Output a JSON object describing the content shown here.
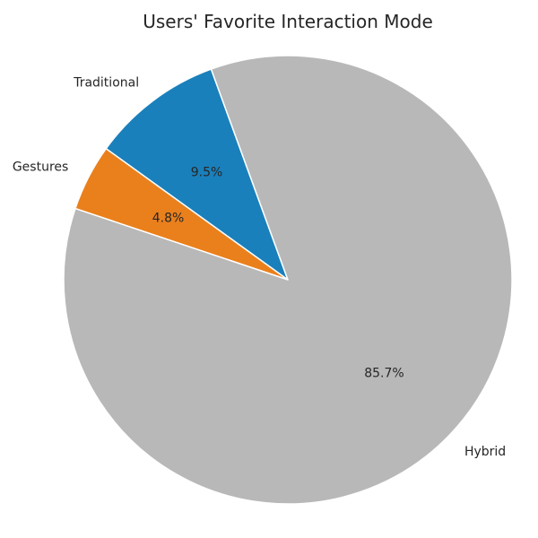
{
  "chart_data": {
    "type": "pie",
    "title": "Users' Favorite Interaction Mode",
    "categories": [
      "Traditional",
      "Gestures",
      "Hybrid"
    ],
    "values": [
      9.5,
      4.8,
      85.7
    ],
    "value_labels": [
      "9.5%",
      "4.8%",
      "85.7%"
    ],
    "colors": [
      "#1a80bb",
      "#ea801c",
      "#b8b8b8"
    ],
    "start_angle_deg": 110,
    "direction": "counterclockwise",
    "legend": "none"
  }
}
